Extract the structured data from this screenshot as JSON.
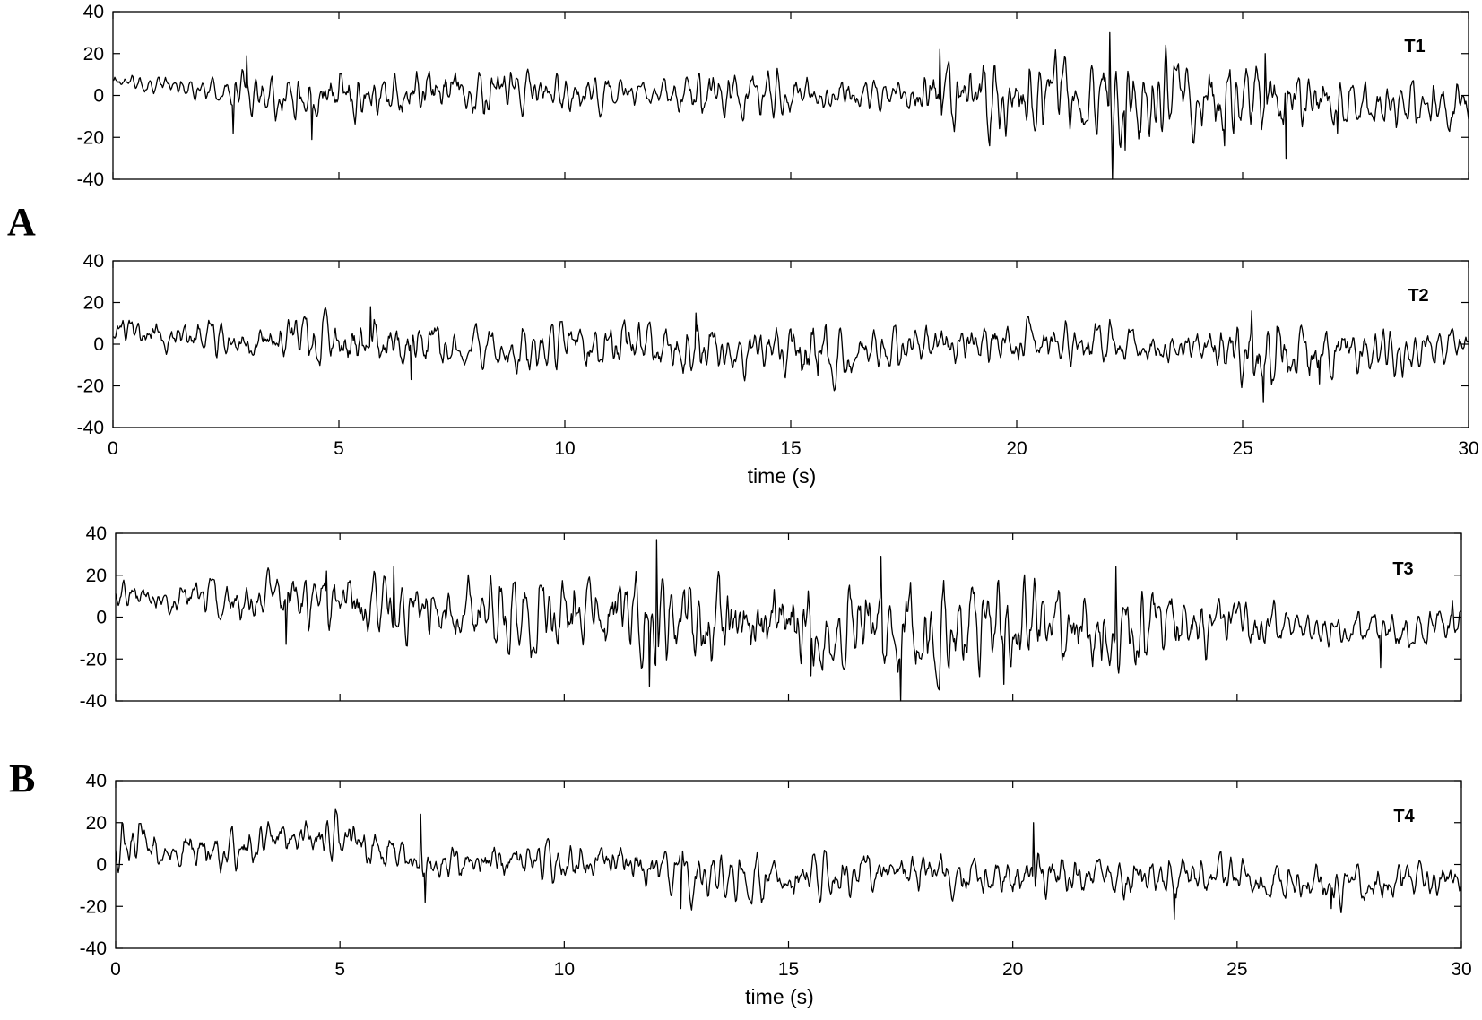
{
  "panel_labels": [
    "A",
    "B"
  ],
  "chart_data": [
    {
      "type": "line",
      "panel": "A",
      "series_label": "T1",
      "x_range": [
        0,
        30
      ],
      "ylim": [
        -40,
        40
      ],
      "yticks": [
        40,
        20,
        0,
        -20,
        -40
      ],
      "xticks": [
        0,
        5,
        10,
        15,
        20,
        25,
        30
      ],
      "show_xtick_labels": false,
      "xlabel": "",
      "noise": {
        "seed": 11,
        "baseline": [
          [
            0,
            7
          ],
          [
            2.6,
            2
          ],
          [
            5,
            2
          ],
          [
            10,
            1
          ],
          [
            15,
            0
          ],
          [
            18,
            0
          ],
          [
            22,
            -2
          ],
          [
            30,
            -4
          ]
        ],
        "amp": [
          [
            0,
            3
          ],
          [
            2.5,
            3
          ],
          [
            2.9,
            8
          ],
          [
            8,
            8
          ],
          [
            11,
            5
          ],
          [
            12,
            3
          ],
          [
            13,
            8
          ],
          [
            17,
            4
          ],
          [
            17.9,
            6
          ],
          [
            18.5,
            10
          ],
          [
            23,
            14
          ],
          [
            26,
            11
          ],
          [
            27.5,
            7
          ],
          [
            30,
            7
          ]
        ]
      },
      "spikes": [
        [
          2.65,
          -18
        ],
        [
          2.95,
          19
        ],
        [
          4.4,
          -21
        ],
        [
          18.3,
          22
        ],
        [
          19.4,
          -24
        ],
        [
          22.05,
          30
        ],
        [
          22.12,
          -40
        ],
        [
          22.4,
          -26
        ],
        [
          24.6,
          -24
        ],
        [
          25.5,
          20
        ],
        [
          25.95,
          -30
        ],
        [
          27.1,
          -18
        ]
      ]
    },
    {
      "type": "line",
      "panel": "A",
      "series_label": "T2",
      "x_range": [
        0,
        30
      ],
      "ylim": [
        -40,
        40
      ],
      "yticks": [
        40,
        20,
        0,
        -20,
        -40
      ],
      "xticks": [
        0,
        5,
        10,
        15,
        20,
        25,
        30
      ],
      "xtick_labels": [
        "0",
        "5",
        "10",
        "15",
        "20",
        "25",
        "30"
      ],
      "show_xtick_labels": true,
      "xlabel": "time (s)",
      "noise": {
        "seed": 23,
        "baseline": [
          [
            0,
            6
          ],
          [
            3,
            2
          ],
          [
            6,
            2
          ],
          [
            8,
            -4
          ],
          [
            11,
            0
          ],
          [
            15,
            -3
          ],
          [
            20,
            2
          ],
          [
            25,
            -3
          ],
          [
            27.5,
            -6
          ],
          [
            30,
            0
          ]
        ],
        "amp": [
          [
            0,
            5
          ],
          [
            3.5,
            6
          ],
          [
            5.5,
            9
          ],
          [
            7.5,
            6
          ],
          [
            12,
            9
          ],
          [
            14,
            7
          ],
          [
            15.7,
            11
          ],
          [
            17,
            6
          ],
          [
            20,
            7
          ],
          [
            24,
            5
          ],
          [
            24.6,
            9
          ],
          [
            25.4,
            13
          ],
          [
            27,
            8
          ],
          [
            30,
            5
          ]
        ]
      },
      "spikes": [
        [
          5.7,
          18
        ],
        [
          6.6,
          -17
        ],
        [
          12.9,
          15
        ],
        [
          15.6,
          -15
        ],
        [
          25.2,
          16
        ],
        [
          25.45,
          -28
        ],
        [
          26.7,
          -19
        ]
      ]
    },
    {
      "type": "line",
      "panel": "B",
      "series_label": "T3",
      "x_range": [
        0,
        30
      ],
      "ylim": [
        -40,
        40
      ],
      "yticks": [
        40,
        20,
        0,
        -20,
        -40
      ],
      "xticks": [
        0,
        5,
        10,
        15,
        20,
        25,
        30
      ],
      "show_xtick_labels": false,
      "xlabel": "",
      "noise": {
        "seed": 37,
        "baseline": [
          [
            0,
            11
          ],
          [
            3,
            8
          ],
          [
            5,
            6
          ],
          [
            8,
            2
          ],
          [
            15,
            -4
          ],
          [
            20,
            -4
          ],
          [
            25,
            -4
          ],
          [
            28,
            -6
          ],
          [
            30,
            -6
          ]
        ],
        "amp": [
          [
            0,
            4
          ],
          [
            3.5,
            7
          ],
          [
            5,
            10
          ],
          [
            7.5,
            9
          ],
          [
            9,
            12
          ],
          [
            12,
            15
          ],
          [
            17,
            14
          ],
          [
            22,
            14
          ],
          [
            25,
            9
          ],
          [
            27,
            5
          ],
          [
            28.5,
            6
          ],
          [
            30,
            7
          ]
        ]
      },
      "spikes": [
        [
          3.8,
          -13
        ],
        [
          4.7,
          22
        ],
        [
          6.2,
          24
        ],
        [
          12.05,
          37
        ],
        [
          11.9,
          -33
        ],
        [
          15.5,
          -28
        ],
        [
          17.05,
          29
        ],
        [
          17.5,
          -40
        ],
        [
          19.8,
          -32
        ],
        [
          22.3,
          24
        ],
        [
          28.2,
          -24
        ],
        [
          29.8,
          8
        ]
      ]
    },
    {
      "type": "line",
      "panel": "B",
      "series_label": "T4",
      "x_range": [
        0,
        30
      ],
      "ylim": [
        -40,
        40
      ],
      "yticks": [
        40,
        20,
        0,
        -20,
        -40
      ],
      "xticks": [
        0,
        5,
        10,
        15,
        20,
        25,
        30
      ],
      "xtick_labels": [
        "0",
        "5",
        "10",
        "15",
        "20",
        "25",
        "30"
      ],
      "show_xtick_labels": true,
      "xlabel": "time (s)",
      "noise": {
        "seed": 53,
        "baseline": [
          [
            0,
            10
          ],
          [
            2.8,
            6
          ],
          [
            4,
            15
          ],
          [
            5.5,
            10
          ],
          [
            7,
            0
          ],
          [
            10,
            2
          ],
          [
            12.5,
            -4
          ],
          [
            15,
            -8
          ],
          [
            17,
            -2
          ],
          [
            20,
            -6
          ],
          [
            25,
            -6
          ],
          [
            27,
            -10
          ],
          [
            30,
            -8
          ]
        ],
        "amp": [
          [
            0,
            7
          ],
          [
            3,
            6
          ],
          [
            5,
            7
          ],
          [
            7,
            6
          ],
          [
            10,
            6
          ],
          [
            12.5,
            7
          ],
          [
            15,
            7
          ],
          [
            20,
            7
          ],
          [
            23,
            6
          ],
          [
            30,
            6
          ]
        ]
      },
      "spikes": [
        [
          6.8,
          24
        ],
        [
          6.9,
          -18
        ],
        [
          12.6,
          -21
        ],
        [
          20.45,
          20
        ],
        [
          23.6,
          -26
        ],
        [
          27.1,
          -21
        ]
      ]
    }
  ]
}
